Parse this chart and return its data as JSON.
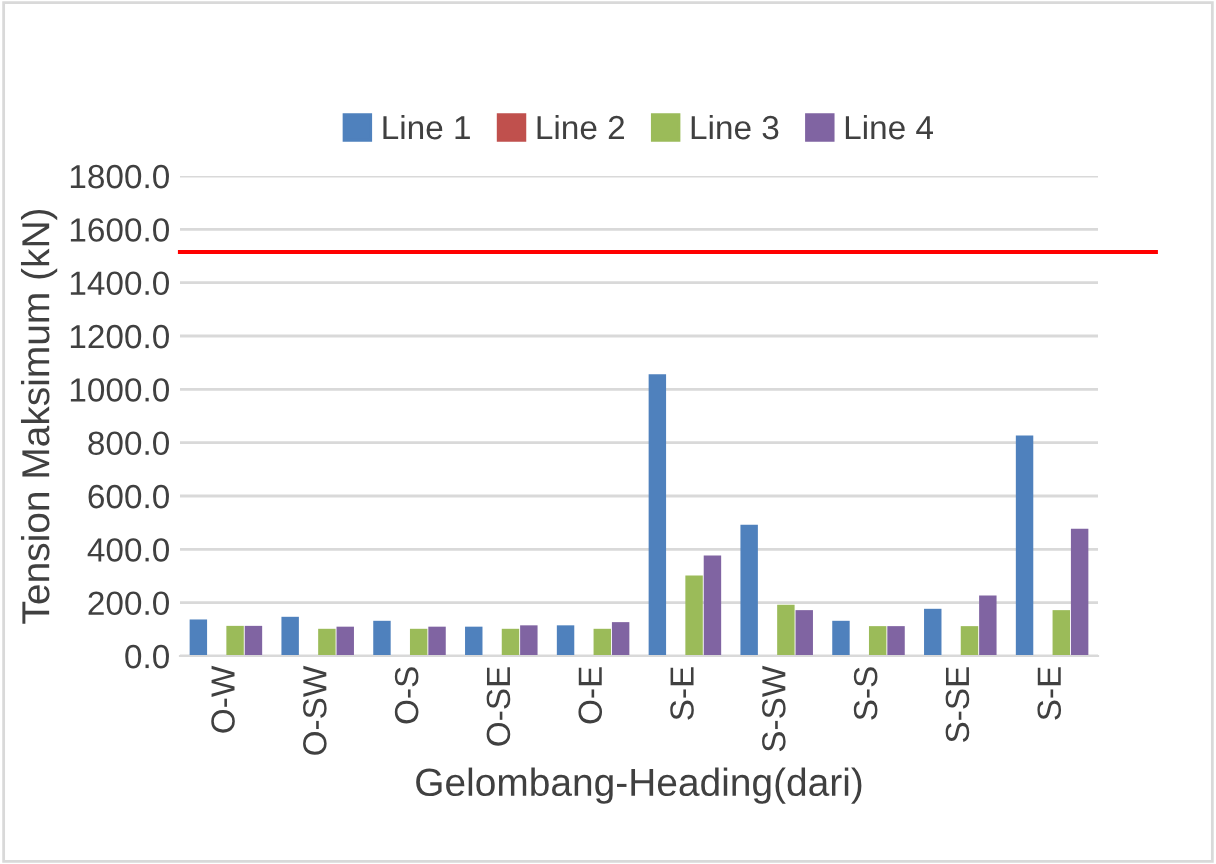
{
  "chart_data": {
    "type": "bar",
    "xlabel": "Gelombang-Heading(dari)",
    "ylabel": "Tension Maksimum (kN)",
    "categories": [
      "O-W",
      "O-SW",
      "O-S",
      "O-SE",
      "O-E",
      "S-E",
      "S-SW",
      "S-S",
      "S-SE",
      "S-E"
    ],
    "series": [
      {
        "name": "Line 1",
        "color": "#4f81bd",
        "values": [
          137,
          147,
          132,
          110,
          115,
          1057,
          492,
          132,
          177,
          827
        ]
      },
      {
        "name": "Line 2",
        "color": "#c0504d",
        "values": [
          null,
          null,
          null,
          null,
          null,
          null,
          null,
          null,
          null,
          null
        ]
      },
      {
        "name": "Line 3",
        "color": "#9bbb59",
        "values": [
          113,
          102,
          102,
          102,
          102,
          302,
          192,
          112,
          112,
          172
        ]
      },
      {
        "name": "Line 4",
        "color": "#8064a2",
        "values": [
          113,
          110,
          110,
          115,
          127,
          377,
          172,
          112,
          227,
          477
        ]
      }
    ],
    "ylim": [
      0,
      1800
    ],
    "yticks": [
      {
        "value": 0,
        "label": "0.0"
      },
      {
        "value": 200,
        "label": "200.0"
      },
      {
        "value": 400,
        "label": "400.0"
      },
      {
        "value": 600,
        "label": "600.0"
      },
      {
        "value": 800,
        "label": "800.0"
      },
      {
        "value": 1000,
        "label": "1000.0"
      },
      {
        "value": 1200,
        "label": "1200.0"
      },
      {
        "value": 1400,
        "label": "1400.0"
      },
      {
        "value": 1600,
        "label": "1600.0"
      },
      {
        "value": 1800,
        "label": "1800.0"
      }
    ],
    "ref_lines": [
      {
        "axis": "y",
        "value": 1515,
        "color": "#ff0000"
      }
    ],
    "grid": "y",
    "legend": "top"
  }
}
